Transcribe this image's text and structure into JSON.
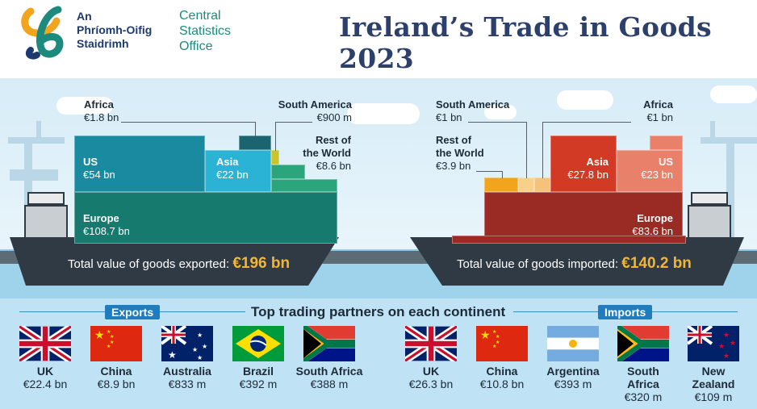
{
  "header": {
    "logo_ga_line1": "An",
    "logo_ga_line2": "Phríomh-Oifig",
    "logo_ga_line3": "Staidrimh",
    "logo_en_line1": "Central",
    "logo_en_line2": "Statistics",
    "logo_en_line3": "Office",
    "title": "Ireland’s Trade in Goods 2023"
  },
  "colors": {
    "title": "#2d3f6b",
    "export_teal": "#1a8aa0",
    "import_red": "#9a2a24",
    "accent_gold": "#f2b632",
    "hull": "#2f3a45"
  },
  "exports": {
    "africa": {
      "name": "Africa",
      "value": "€1.8 bn"
    },
    "south_america": {
      "name": "South America",
      "value": "€900 m"
    },
    "us": {
      "name": "US",
      "value": "€54 bn"
    },
    "asia": {
      "name": "Asia",
      "value": "€22 bn"
    },
    "rest": {
      "name1": "Rest of",
      "name2": "the World",
      "value": "€8.6 bn"
    },
    "europe": {
      "name": "Europe",
      "value": "€108.7 bn"
    },
    "total_label": "Total value of goods exported:",
    "total_value": "€196 bn"
  },
  "imports": {
    "south_america": {
      "name": "South America",
      "value": "€1 bn"
    },
    "africa": {
      "name": "Africa",
      "value": "€1 bn"
    },
    "rest": {
      "name1": "Rest of",
      "name2": "the World",
      "value": "€3.9 bn"
    },
    "asia": {
      "name": "Asia",
      "value": "€27.8 bn"
    },
    "us": {
      "name": "US",
      "value": "€23 bn"
    },
    "europe": {
      "name": "Europe",
      "value": "€83.6 bn"
    },
    "total_label": "Total value of goods imported:",
    "total_value": "€140.2 bn"
  },
  "partners": {
    "section_title": "Top trading partners on each continent",
    "exports_tag": "Exports",
    "imports_tag": "Imports",
    "exports_list": [
      {
        "name": "UK",
        "value": "€22.4 bn",
        "flag": "uk-flag-icon"
      },
      {
        "name": "China",
        "value": "€8.9 bn",
        "flag": "china-flag-icon"
      },
      {
        "name": "Australia",
        "value": "€833 m",
        "flag": "australia-flag-icon"
      },
      {
        "name": "Brazil",
        "value": "€392 m",
        "flag": "brazil-flag-icon"
      },
      {
        "name": "South Africa",
        "value": "€388 m",
        "flag": "south-africa-flag-icon"
      }
    ],
    "imports_list": [
      {
        "name": "UK",
        "value": "€26.3 bn",
        "flag": "uk-flag-icon"
      },
      {
        "name": "China",
        "value": "€10.8 bn",
        "flag": "china-flag-icon"
      },
      {
        "name": "Argentina",
        "value": "€393 m",
        "flag": "argentina-flag-icon"
      },
      {
        "name1": "South",
        "name2": "Africa",
        "value": "€320 m",
        "flag": "south-africa-flag-icon"
      },
      {
        "name1": "New",
        "name2": "Zealand",
        "value": "€109 m",
        "flag": "new-zealand-flag-icon"
      }
    ]
  }
}
